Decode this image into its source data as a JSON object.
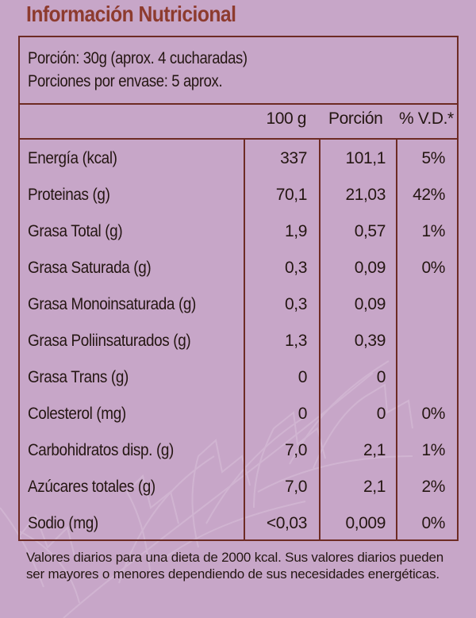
{
  "title": "Información Nutricional",
  "serving": {
    "portion": "Porción: 30g (aprox. 4 cucharadas)",
    "servings_per_container": "Porciones por envase: 5 aprox."
  },
  "columns": {
    "per_100g": "100 g",
    "per_portion": "Porción",
    "daily_value": "% V.D.*"
  },
  "rows": [
    {
      "name": "Energía (kcal)",
      "per_100g": "337",
      "per_portion": "101,1",
      "daily_value": "5%"
    },
    {
      "name": "Proteinas (g)",
      "per_100g": "70,1",
      "per_portion": "21,03",
      "daily_value": "42%"
    },
    {
      "name": "Grasa Total (g)",
      "per_100g": "1,9",
      "per_portion": "0,57",
      "daily_value": "1%"
    },
    {
      "name": "Grasa Saturada (g)",
      "per_100g": "0,3",
      "per_portion": "0,09",
      "daily_value": "0%"
    },
    {
      "name": "Grasa Monoinsaturada (g)",
      "per_100g": "0,3",
      "per_portion": "0,09",
      "daily_value": ""
    },
    {
      "name": "Grasa Poliinsaturados (g)",
      "per_100g": "1,3",
      "per_portion": "0,39",
      "daily_value": ""
    },
    {
      "name": "Grasa Trans (g)",
      "per_100g": "0",
      "per_portion": "0",
      "daily_value": ""
    },
    {
      "name": "Colesterol (mg)",
      "per_100g": "0",
      "per_portion": "0",
      "daily_value": "0%"
    },
    {
      "name": "Carbohidratos disp. (g)",
      "per_100g": "7,0",
      "per_portion": "2,1",
      "daily_value": "1%"
    },
    {
      "name": "Azúcares totales (g)",
      "per_100g": "7,0",
      "per_portion": "2,1",
      "daily_value": "2%"
    },
    {
      "name": "Sodio (mg)",
      "per_100g": "<0,03",
      "per_portion": "0,009",
      "daily_value": "0%"
    }
  ],
  "footnote": "Valores diarios para una dieta de 2000 kcal. Sus valores diarios pueden ser mayores o menores dependiendo de sus necesidades energéticas.",
  "colors": {
    "background": "#c7a6c8",
    "title": "#8d3b2e",
    "border": "#6d2b24",
    "text": "#241612"
  },
  "decorations": {
    "background_icon": "leaf-watermark-icon"
  }
}
